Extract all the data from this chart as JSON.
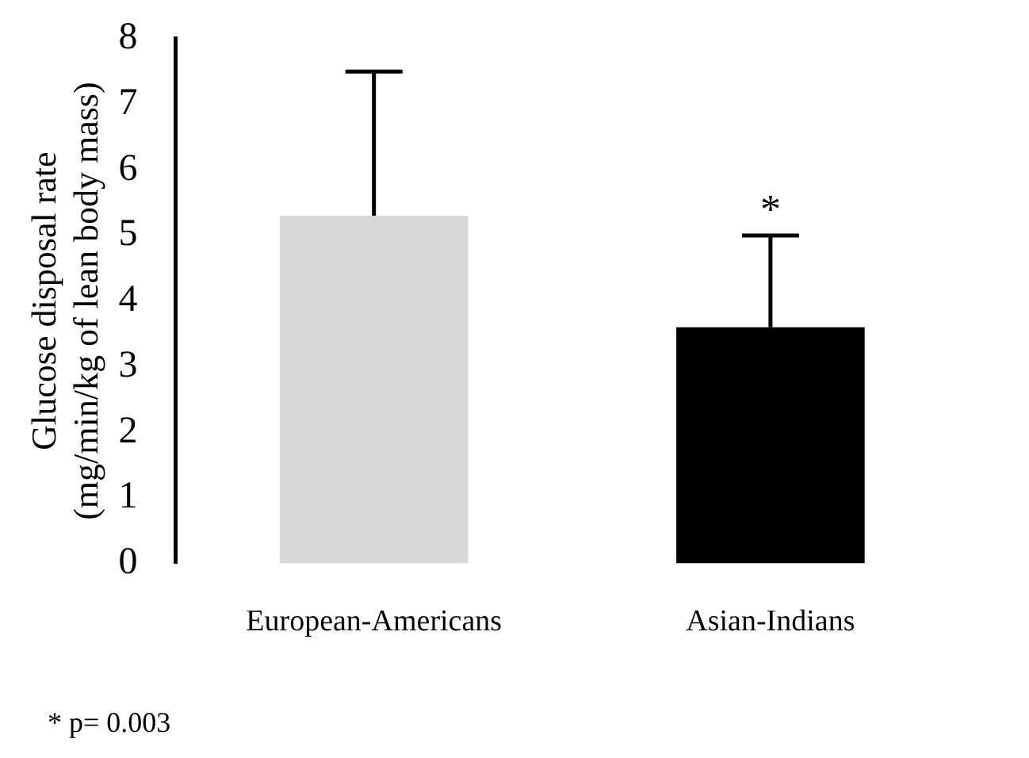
{
  "chart_data": {
    "type": "bar",
    "ylabel": "Glucose disposal rate\n(mg/min/kg of lean body mass)",
    "categories": [
      "European-Americans",
      "Asian-Indians"
    ],
    "values": [
      5.3,
      3.6
    ],
    "colors": [
      "#d8d8d8",
      "#000000"
    ],
    "errors": [
      [
        5.3,
        7.5
      ],
      [
        3.6,
        5.0
      ]
    ],
    "ylim": [
      0,
      8
    ],
    "yticks": [
      0,
      1,
      2,
      3,
      4,
      5,
      6,
      7,
      8
    ],
    "grid": false,
    "legend": false,
    "annotations": [
      "*",
      "* p= 0.003"
    ]
  }
}
